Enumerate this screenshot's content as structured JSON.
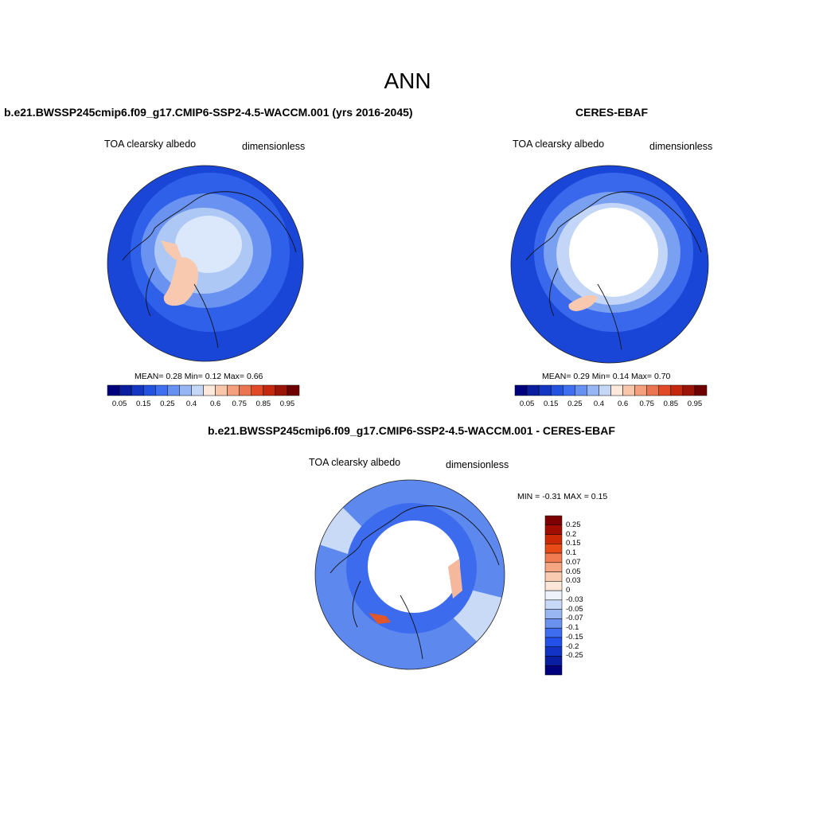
{
  "title": "ANN",
  "panels": [
    {
      "id": "model",
      "title": "b.e21.BWSSP245cmip6.f09_g17.CMIP6-SSP2-4.5-WACCM.001 (yrs 2016-2045)",
      "variable": "TOA clearsky albedo",
      "units": "dimensionless",
      "stats": "MEAN=   0.28  Min=   0.12  Max=   0.66"
    },
    {
      "id": "obs",
      "title": "CERES-EBAF",
      "variable": "TOA clearsky albedo",
      "units": "dimensionless",
      "stats": "MEAN=   0.29  Min=   0.14  Max=   0.70"
    },
    {
      "id": "diff",
      "title": "b.e21.BWSSP245cmip6.f09_g17.CMIP6-SSP2-4.5-WACCM.001 - CERES-EBAF",
      "variable": "TOA clearsky albedo",
      "units": "dimensionless",
      "stats": "MIN =  -0.31 MAX =   0.15"
    }
  ],
  "colorbar_abs": {
    "colors": [
      "#00007f",
      "#0a1fa0",
      "#1436c4",
      "#2152e0",
      "#3f6ff0",
      "#6691f3",
      "#95b5f5",
      "#c4d7f7",
      "#fde8dc",
      "#f9c6ac",
      "#f4a07f",
      "#ec7551",
      "#e04a26",
      "#c4290e",
      "#9b1506",
      "#6e0000"
    ],
    "tick_labels": [
      "0.05",
      "0.15",
      "0.25",
      "0.4",
      "0.6",
      "0.75",
      "0.85",
      "0.95"
    ]
  },
  "colorbar_diff": {
    "colors": [
      "#7d0000",
      "#a00d00",
      "#cc2a07",
      "#e84a18",
      "#f27c52",
      "#f6a682",
      "#f9cbb0",
      "#fbe6d8",
      "#eef3fb",
      "#c7d9f6",
      "#98b7f2",
      "#6a92ee",
      "#3e6df0",
      "#2250e8",
      "#1233c6",
      "#0a1ea2",
      "#00007f"
    ],
    "tick_labels": [
      "0.25",
      "0.2",
      "0.15",
      "0.1",
      "0.07",
      "0.05",
      "0.03",
      "0",
      "-0.03",
      "-0.05",
      "-0.07",
      "-0.1",
      "-0.15",
      "-0.2",
      "-0.25"
    ]
  },
  "map_colors": {
    "ocean_low": "#1a46d8",
    "ocean_mid": "#2f60ea",
    "ice_high": "#6a92f0",
    "ice_light": "#aec8f6",
    "ice_pale": "#dbe7fb",
    "greenland": "#f9c9af",
    "white": "#ffffff",
    "diff_blue": "#3d6bee",
    "diff_light": "#c9daf7"
  }
}
